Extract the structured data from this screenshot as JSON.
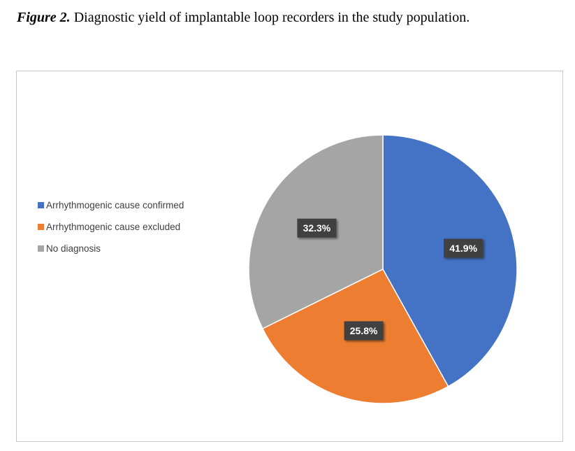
{
  "caption": {
    "label": "Figure 2.",
    "text": " Diagnostic yield of implantable loop recorders in the study population."
  },
  "chart_data": {
    "type": "pie",
    "title": "",
    "legend_position": "left",
    "data_labels": [
      "41.9%",
      "25.8%",
      "32.3%"
    ],
    "series": [
      {
        "categories": [
          "Arrhythmogenic cause confirmed",
          "Arrhythmogenic cause excluded",
          "No diagnosis"
        ],
        "values": [
          41.9,
          25.8,
          32.3
        ],
        "colors": [
          "#4472c4",
          "#ed7d31",
          "#a5a5a5"
        ]
      }
    ]
  }
}
